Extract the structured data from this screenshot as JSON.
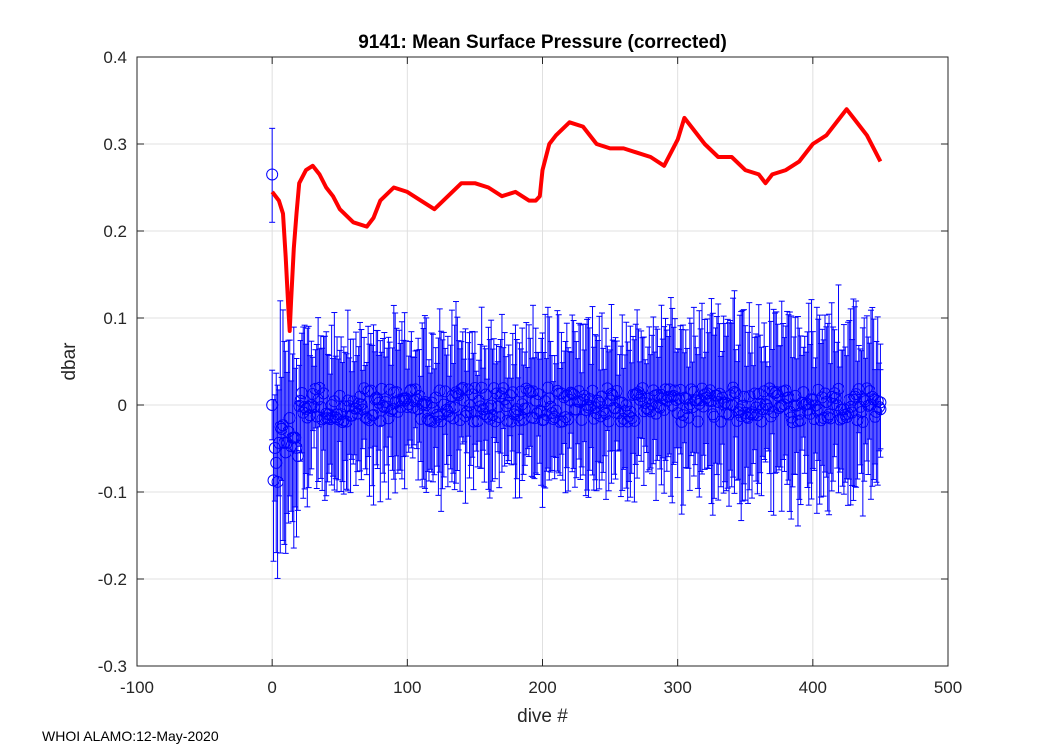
{
  "footer": "WHOI ALAMO:12-May-2020",
  "chart_data": {
    "type": "line",
    "title": "9141: Mean Surface Pressure (corrected)",
    "xlabel": "dive #",
    "ylabel": "dbar",
    "xlim": [
      -100,
      500
    ],
    "ylim": [
      -0.3,
      0.4
    ],
    "xticks": [
      "-100",
      "0",
      "100",
      "200",
      "300",
      "400",
      "500"
    ],
    "yticks": [
      "-0.3",
      "-0.2",
      "-0.1",
      "0",
      "0.1",
      "0.2",
      "0.3",
      "0.4"
    ],
    "grid": true,
    "colors": {
      "smoothed": "#ff0000",
      "errorbars": "#0000ff",
      "axes": "#262626",
      "grid": "#e0e0e0"
    },
    "series": [
      {
        "name": "smoothed mean surface pressure",
        "style": "thick red line",
        "x": [
          0,
          5,
          8,
          10,
          12,
          13,
          14,
          16,
          18,
          20,
          25,
          30,
          35,
          40,
          45,
          50,
          60,
          70,
          75,
          80,
          90,
          100,
          110,
          120,
          130,
          140,
          150,
          160,
          170,
          180,
          190,
          195,
          198,
          200,
          205,
          210,
          220,
          230,
          240,
          250,
          260,
          270,
          280,
          290,
          300,
          305,
          310,
          320,
          330,
          340,
          350,
          360,
          365,
          370,
          380,
          390,
          400,
          410,
          420,
          425,
          430,
          440,
          445,
          450
        ],
        "y": [
          0.245,
          0.235,
          0.22,
          0.17,
          0.11,
          0.085,
          0.12,
          0.18,
          0.22,
          0.255,
          0.27,
          0.275,
          0.265,
          0.25,
          0.24,
          0.225,
          0.21,
          0.205,
          0.215,
          0.235,
          0.25,
          0.245,
          0.235,
          0.225,
          0.24,
          0.255,
          0.255,
          0.25,
          0.24,
          0.245,
          0.235,
          0.235,
          0.24,
          0.27,
          0.3,
          0.31,
          0.325,
          0.32,
          0.3,
          0.295,
          0.295,
          0.29,
          0.285,
          0.275,
          0.305,
          0.33,
          0.32,
          0.3,
          0.285,
          0.285,
          0.27,
          0.265,
          0.255,
          0.265,
          0.27,
          0.28,
          0.3,
          0.31,
          0.33,
          0.34,
          0.33,
          0.31,
          0.295,
          0.28
        ]
      },
      {
        "name": "per-dive values",
        "style": "blue circles with error bars",
        "x_range": [
          0,
          450
        ],
        "first_point": {
          "x": 0,
          "y": 0.265,
          "err_low": 0.21,
          "err_high": 0.318
        },
        "typical_center": 0.0,
        "typical_error": 0.07
      }
    ]
  }
}
